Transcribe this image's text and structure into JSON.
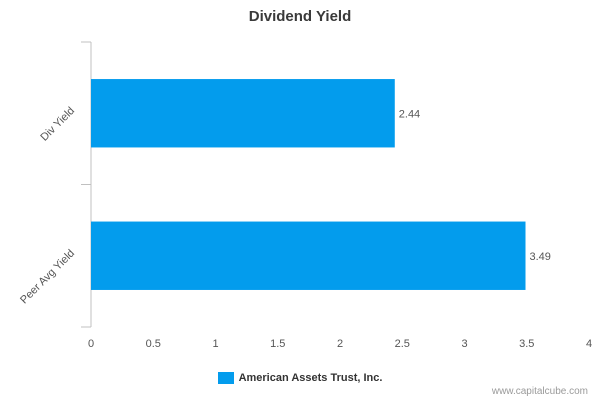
{
  "chart_data": {
    "type": "bar",
    "orientation": "horizontal",
    "title": "Dividend Yield",
    "categories": [
      "Div Yield",
      "Peer Avg Yield"
    ],
    "series": [
      {
        "name": "American Assets Trust, Inc.",
        "values": [
          2.44,
          3.49
        ]
      }
    ],
    "data_labels": [
      "2.44",
      "3.49"
    ],
    "xlim": [
      0,
      4
    ],
    "x_ticks": [
      "0",
      "0.5",
      "1",
      "1.5",
      "2",
      "2.5",
      "3",
      "3.5",
      "4"
    ],
    "xlabel": "",
    "ylabel": "",
    "grid": false,
    "legend_position": "bottom-center"
  },
  "colors": {
    "bar": "#039ced",
    "axis": "#c0c0c0",
    "text": "#555555"
  },
  "watermark": "www.capitalcube.com"
}
